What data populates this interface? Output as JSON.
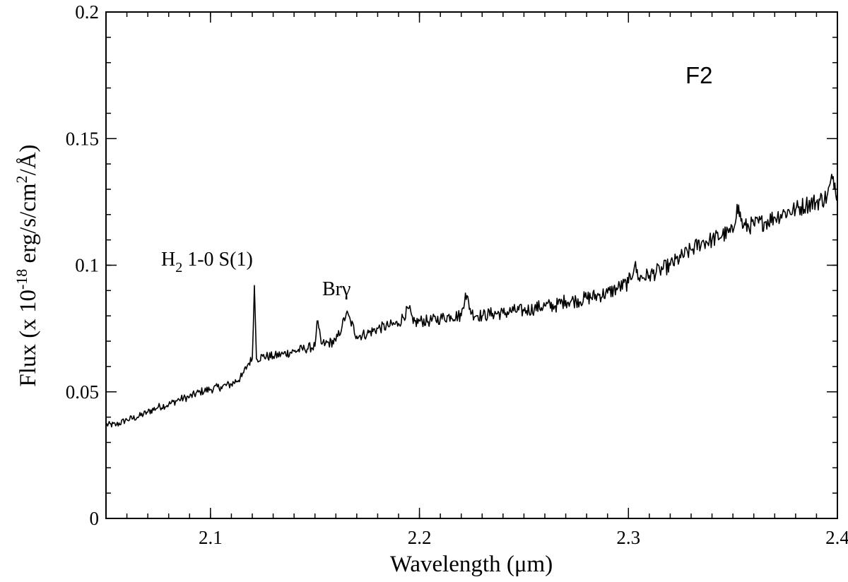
{
  "chart_data": {
    "type": "line",
    "panel_label": "F2",
    "xlabel": "Wavelength (μm)",
    "ylabel": {
      "main": "Flux (x 10",
      "exp": "-18",
      "unit": " erg/s/cm",
      "exp2": "2",
      "tail": "/Å)"
    },
    "xlim": [
      2.05,
      2.4
    ],
    "ylim": [
      0,
      0.2
    ],
    "x_ticks": [
      {
        "value": 2.1,
        "label": "2.1"
      },
      {
        "value": 2.2,
        "label": "2.2"
      },
      {
        "value": 2.3,
        "label": "2.3"
      },
      {
        "value": 2.4,
        "label": "2.4"
      }
    ],
    "x_minor_step": 0.01,
    "y_ticks": [
      {
        "value": 0,
        "label": "0"
      },
      {
        "value": 0.05,
        "label": "0.05"
      },
      {
        "value": 0.1,
        "label": "0.1"
      },
      {
        "value": 0.15,
        "label": "0.15"
      },
      {
        "value": 0.2,
        "label": "0.2"
      }
    ],
    "y_minor_step": 0.01,
    "grid": false,
    "line_color": "#000000",
    "annotations": [
      {
        "name": "h2-line",
        "base": "H",
        "sub": "2",
        "rest": " 1-0 S(1)",
        "x": 2.122,
        "y": 0.1
      },
      {
        "name": "brgamma-line",
        "text": "Brγ",
        "x": 2.166,
        "y": 0.087
      }
    ],
    "series": [
      {
        "values": [
          [
            2.05,
            0.037
          ],
          [
            2.055,
            0.037
          ],
          [
            2.06,
            0.039
          ],
          [
            2.065,
            0.04
          ],
          [
            2.07,
            0.042
          ],
          [
            2.075,
            0.044
          ],
          [
            2.08,
            0.045
          ],
          [
            2.085,
            0.047
          ],
          [
            2.09,
            0.048
          ],
          [
            2.095,
            0.05
          ],
          [
            2.1,
            0.051
          ],
          [
            2.105,
            0.052
          ],
          [
            2.11,
            0.053
          ],
          [
            2.115,
            0.056
          ],
          [
            2.118,
            0.061
          ],
          [
            2.12,
            0.063
          ],
          [
            2.121,
            0.092
          ],
          [
            2.122,
            0.063
          ],
          [
            2.125,
            0.064
          ],
          [
            2.13,
            0.064
          ],
          [
            2.135,
            0.065
          ],
          [
            2.14,
            0.066
          ],
          [
            2.145,
            0.067
          ],
          [
            2.15,
            0.068
          ],
          [
            2.151,
            0.078
          ],
          [
            2.153,
            0.069
          ],
          [
            2.155,
            0.069
          ],
          [
            2.16,
            0.07
          ],
          [
            2.163,
            0.076
          ],
          [
            2.165,
            0.081
          ],
          [
            2.167,
            0.078
          ],
          [
            2.17,
            0.072
          ],
          [
            2.175,
            0.073
          ],
          [
            2.18,
            0.075
          ],
          [
            2.185,
            0.076
          ],
          [
            2.19,
            0.077
          ],
          [
            2.195,
            0.083
          ],
          [
            2.197,
            0.077
          ],
          [
            2.2,
            0.078
          ],
          [
            2.205,
            0.078
          ],
          [
            2.21,
            0.079
          ],
          [
            2.215,
            0.08
          ],
          [
            2.22,
            0.08
          ],
          [
            2.222,
            0.089
          ],
          [
            2.225,
            0.081
          ],
          [
            2.23,
            0.08
          ],
          [
            2.235,
            0.081
          ],
          [
            2.24,
            0.081
          ],
          [
            2.245,
            0.082
          ],
          [
            2.25,
            0.082
          ],
          [
            2.255,
            0.083
          ],
          [
            2.26,
            0.084
          ],
          [
            2.265,
            0.084
          ],
          [
            2.27,
            0.086
          ],
          [
            2.275,
            0.086
          ],
          [
            2.28,
            0.087
          ],
          [
            2.285,
            0.088
          ],
          [
            2.29,
            0.089
          ],
          [
            2.295,
            0.091
          ],
          [
            2.3,
            0.093
          ],
          [
            2.303,
            0.1
          ],
          [
            2.305,
            0.095
          ],
          [
            2.31,
            0.096
          ],
          [
            2.315,
            0.098
          ],
          [
            2.32,
            0.1
          ],
          [
            2.325,
            0.103
          ],
          [
            2.33,
            0.106
          ],
          [
            2.335,
            0.109
          ],
          [
            2.34,
            0.11
          ],
          [
            2.345,
            0.112
          ],
          [
            2.35,
            0.113
          ],
          [
            2.352,
            0.124
          ],
          [
            2.355,
            0.115
          ],
          [
            2.36,
            0.116
          ],
          [
            2.365,
            0.117
          ],
          [
            2.37,
            0.119
          ],
          [
            2.375,
            0.121
          ],
          [
            2.38,
            0.122
          ],
          [
            2.385,
            0.124
          ],
          [
            2.39,
            0.125
          ],
          [
            2.395,
            0.127
          ],
          [
            2.398,
            0.135
          ],
          [
            2.4,
            0.128
          ]
        ]
      }
    ]
  }
}
